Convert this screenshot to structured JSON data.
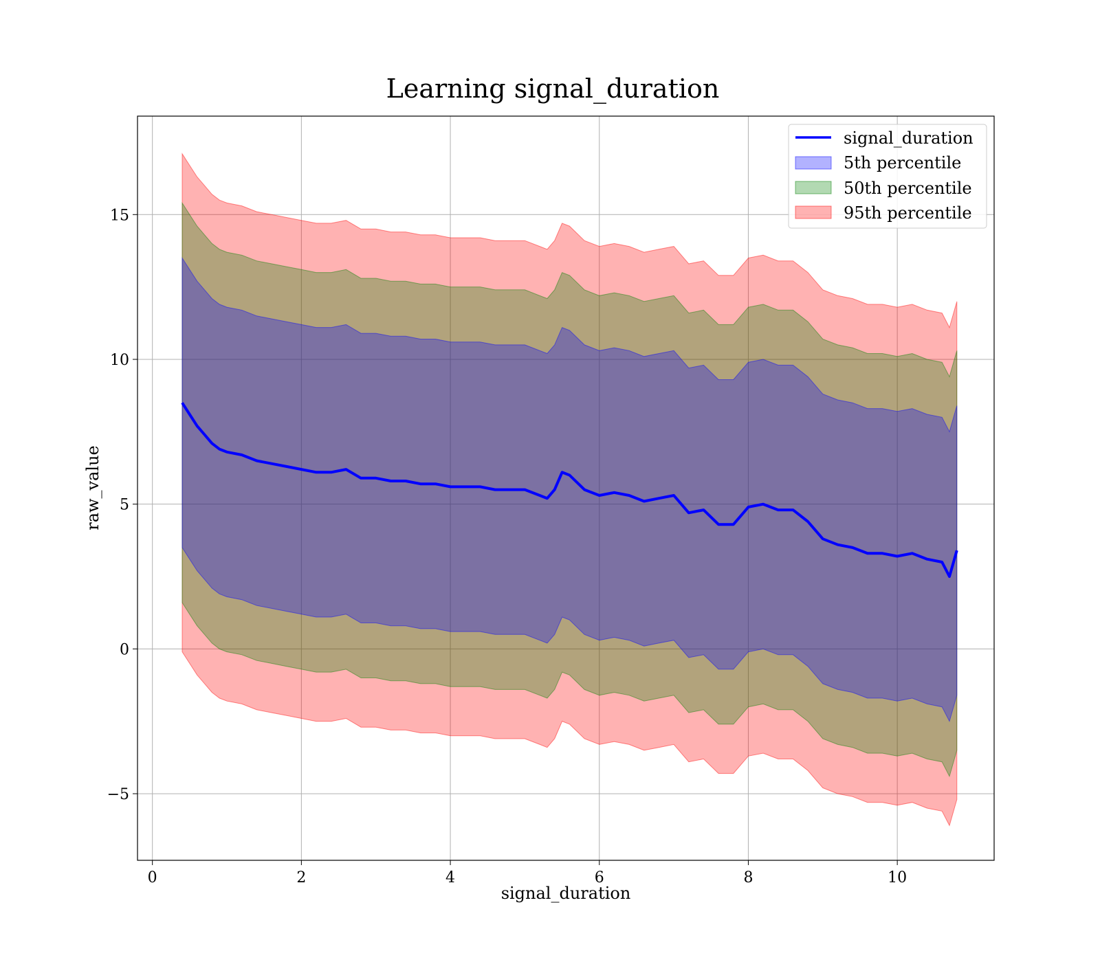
{
  "chart_data": {
    "type": "area",
    "title": "Learning signal_duration",
    "xlabel": "signal_duration",
    "ylabel": "raw_value",
    "xlim": [
      -0.2,
      11.3
    ],
    "ylim": [
      -7.3,
      18.4
    ],
    "x_ticks": [
      0,
      2,
      4,
      6,
      8,
      10
    ],
    "x_tick_labels": [
      "0",
      "2",
      "4",
      "6",
      "8",
      "10"
    ],
    "y_ticks": [
      -5,
      0,
      5,
      10,
      15
    ],
    "y_tick_labels": [
      "−5",
      "0",
      "5",
      "10",
      "15"
    ],
    "grid": true,
    "legend_position": "upper right",
    "line_series": {
      "name": "signal_duration",
      "color": "#0000ff",
      "x": [
        0.4,
        0.5,
        0.6,
        0.7,
        0.8,
        0.9,
        1.0,
        1.2,
        1.4,
        1.6,
        1.8,
        2.0,
        2.2,
        2.4,
        2.6,
        2.8,
        3.0,
        3.2,
        3.4,
        3.6,
        3.8,
        4.0,
        4.2,
        4.4,
        4.6,
        4.8,
        5.0,
        5.2,
        5.3,
        5.4,
        5.5,
        5.6,
        5.8,
        6.0,
        6.2,
        6.4,
        6.6,
        6.8,
        7.0,
        7.2,
        7.4,
        7.6,
        7.8,
        8.0,
        8.2,
        8.4,
        8.6,
        8.8,
        9.0,
        9.2,
        9.4,
        9.6,
        9.8,
        10.0,
        10.2,
        10.4,
        10.6,
        10.7,
        10.8
      ],
      "y": [
        8.5,
        8.1,
        7.7,
        7.4,
        7.1,
        6.9,
        6.8,
        6.7,
        6.5,
        6.4,
        6.3,
        6.2,
        6.1,
        6.1,
        6.2,
        5.9,
        5.9,
        5.8,
        5.8,
        5.7,
        5.7,
        5.6,
        5.6,
        5.6,
        5.5,
        5.5,
        5.5,
        5.3,
        5.2,
        5.5,
        6.1,
        6.0,
        5.5,
        5.3,
        5.4,
        5.3,
        5.1,
        5.2,
        5.3,
        4.7,
        4.8,
        4.3,
        4.3,
        4.9,
        5.0,
        4.8,
        4.8,
        4.4,
        3.8,
        3.6,
        3.5,
        3.3,
        3.3,
        3.2,
        3.3,
        3.1,
        3.0,
        2.5,
        3.4
      ]
    },
    "bands": [
      {
        "name": "5th percentile",
        "color": "#0000ff",
        "opacity": 0.3,
        "offset": 5.0
      },
      {
        "name": "50th percentile",
        "color": "#008000",
        "opacity": 0.3,
        "offset": 6.9
      },
      {
        "name": "95th percentile",
        "color": "#ff0000",
        "opacity": 0.3,
        "offset": 8.6
      }
    ]
  }
}
